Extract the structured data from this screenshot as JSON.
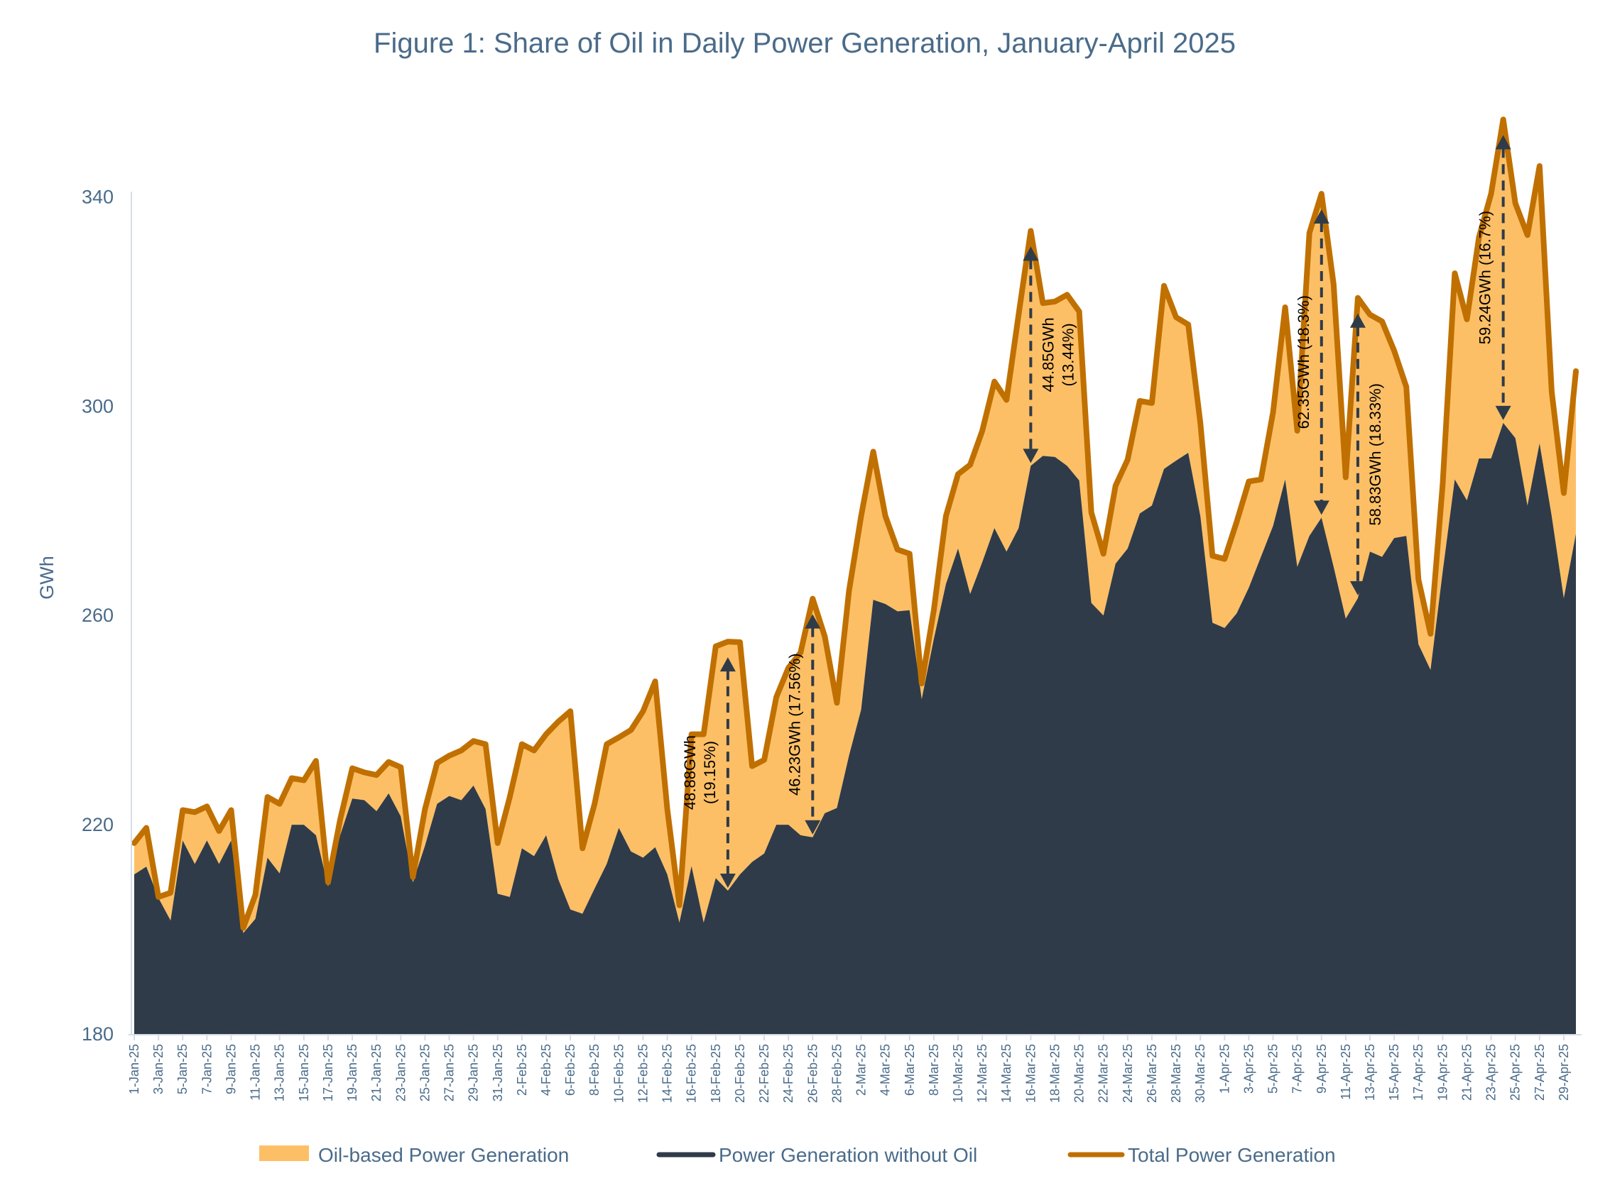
{
  "chart_data": {
    "type": "area",
    "title": "Figure 1: Share of Oil in Daily Power Generation, January-April 2025",
    "xlabel": "",
    "ylabel": "GWh",
    "ylim": [
      180,
      360
    ],
    "yticks": [
      180,
      220,
      260,
      300,
      340
    ],
    "grid": false,
    "legend_position": "bottom",
    "colors": {
      "oil": "#FDBF66",
      "without_oil": "#2F3B48",
      "total": "#C07000",
      "title": "#4A6B8A",
      "arrow": "#2F3B48"
    },
    "x_start": "1-Jan-25",
    "x": [
      "1-Jan-25",
      "2-Jan-25",
      "3-Jan-25",
      "4-Jan-25",
      "5-Jan-25",
      "6-Jan-25",
      "7-Jan-25",
      "8-Jan-25",
      "9-Jan-25",
      "10-Jan-25",
      "11-Jan-25",
      "12-Jan-25",
      "13-Jan-25",
      "14-Jan-25",
      "15-Jan-25",
      "16-Jan-25",
      "17-Jan-25",
      "18-Jan-25",
      "19-Jan-25",
      "20-Jan-25",
      "21-Jan-25",
      "22-Jan-25",
      "23-Jan-25",
      "24-Jan-25",
      "25-Jan-25",
      "26-Jan-25",
      "27-Jan-25",
      "28-Jan-25",
      "29-Jan-25",
      "30-Jan-25",
      "31-Jan-25",
      "1-Feb-25",
      "2-Feb-25",
      "3-Feb-25",
      "4-Feb-25",
      "5-Feb-25",
      "6-Feb-25",
      "7-Feb-25",
      "8-Feb-25",
      "9-Feb-25",
      "10-Feb-25",
      "11-Feb-25",
      "12-Feb-25",
      "13-Feb-25",
      "14-Feb-25",
      "15-Feb-25",
      "16-Feb-25",
      "17-Feb-25",
      "18-Feb-25",
      "19-Feb-25",
      "20-Feb-25",
      "21-Feb-25",
      "22-Feb-25",
      "23-Feb-25",
      "24-Feb-25",
      "25-Feb-25",
      "26-Feb-25",
      "27-Feb-25",
      "28-Feb-25",
      "1-Mar-25",
      "2-Mar-25",
      "3-Mar-25",
      "4-Mar-25",
      "5-Mar-25",
      "6-Mar-25",
      "7-Mar-25",
      "8-Mar-25",
      "9-Mar-25",
      "10-Mar-25",
      "11-Mar-25",
      "12-Mar-25",
      "13-Mar-25",
      "14-Mar-25",
      "15-Mar-25",
      "16-Mar-25",
      "17-Mar-25",
      "18-Mar-25",
      "19-Mar-25",
      "20-Mar-25",
      "21-Mar-25",
      "22-Mar-25",
      "23-Mar-25",
      "24-Mar-25",
      "25-Mar-25",
      "26-Mar-25",
      "27-Mar-25",
      "28-Mar-25",
      "29-Mar-25",
      "30-Mar-25",
      "31-Mar-25",
      "1-Apr-25",
      "2-Apr-25",
      "3-Apr-25",
      "4-Apr-25",
      "5-Apr-25",
      "6-Apr-25",
      "7-Apr-25",
      "8-Apr-25",
      "9-Apr-25",
      "10-Apr-25",
      "11-Apr-25",
      "12-Apr-25",
      "13-Apr-25",
      "14-Apr-25",
      "15-Apr-25",
      "16-Apr-25",
      "17-Apr-25",
      "18-Apr-25",
      "19-Apr-25",
      "20-Apr-25",
      "21-Apr-25",
      "22-Apr-25",
      "23-Apr-25",
      "24-Apr-25",
      "25-Apr-25",
      "26-Apr-25",
      "27-Apr-25",
      "28-Apr-25",
      "29-Apr-25",
      "30-Apr-25"
    ],
    "xtick_labels": [
      "1-Jan-25",
      "3-Jan-25",
      "5-Jan-25",
      "7-Jan-25",
      "9-Jan-25",
      "11-Jan-25",
      "13-Jan-25",
      "15-Jan-25",
      "17-Jan-25",
      "19-Jan-25",
      "21-Jan-25",
      "23-Jan-25",
      "25-Jan-25",
      "27-Jan-25",
      "29-Jan-25",
      "31-Jan-25",
      "2-Feb-25",
      "4-Feb-25",
      "6-Feb-25",
      "8-Feb-25",
      "10-Feb-25",
      "12-Feb-25",
      "14-Feb-25",
      "16-Feb-25",
      "18-Feb-25",
      "20-Feb-25",
      "22-Feb-25",
      "24-Feb-25",
      "26-Feb-25",
      "28-Feb-25",
      "2-Mar-25",
      "4-Mar-25",
      "6-Mar-25",
      "8-Mar-25",
      "10-Mar-25",
      "12-Mar-25",
      "14-Mar-25",
      "16-Mar-25",
      "18-Mar-25",
      "20-Mar-25",
      "22-Mar-25",
      "24-Mar-25",
      "26-Mar-25",
      "28-Mar-25",
      "30-Mar-25",
      "1-Apr-25",
      "3-Apr-25",
      "5-Apr-25",
      "7-Apr-25",
      "9-Apr-25",
      "11-Apr-25",
      "13-Apr-25",
      "15-Apr-25",
      "17-Apr-25",
      "19-Apr-25",
      "21-Apr-25",
      "23-Apr-25",
      "25-Apr-25",
      "27-Apr-25",
      "29-Apr-25"
    ],
    "series": [
      {
        "name": "Oil-based Power Generation",
        "kind": "area-between"
      },
      {
        "name": "Power Generation without Oil",
        "kind": "area",
        "values": [
          210.5,
          212,
          206,
          201.7,
          217,
          212.5,
          217,
          212.5,
          217,
          199.3,
          202,
          213.7,
          210.7,
          220,
          220,
          218,
          208.2,
          218,
          225,
          224.7,
          222.6,
          226,
          221.6,
          209,
          216,
          224,
          225.5,
          224.7,
          227.5,
          223,
          206.8,
          206.2,
          215.5,
          214,
          218,
          209.6,
          203.8,
          203,
          207.8,
          212.5,
          219.4,
          214.9,
          213.7,
          215.7,
          210.5,
          201.3,
          212.1,
          201.3,
          209.8,
          207.4,
          210.5,
          212.9,
          214.5,
          220,
          220,
          218,
          217.6,
          222.2,
          223.2,
          233.2,
          242,
          263,
          262.2,
          260.8,
          261,
          244,
          255.5,
          266,
          272.8,
          264.1,
          270.2,
          276.7,
          272.2,
          276.7,
          288.6,
          290.5,
          290.3,
          288.6,
          285.8,
          262.4,
          260,
          269.9,
          272.8,
          279.5,
          281,
          288,
          289.6,
          291.1,
          279,
          258.6,
          257.6,
          260.4,
          265.3,
          271.2,
          277.1,
          286,
          269.3,
          275.2,
          278.7,
          269.3,
          259.4,
          263.3,
          272.2,
          271.2,
          274.8,
          275.2,
          254.5,
          249.6,
          268.3,
          286,
          282,
          290,
          290,
          296.8,
          293.9,
          281,
          292.9,
          279,
          263.3,
          275.6
        ]
      },
      {
        "name": "Total Power Generation",
        "kind": "line",
        "values": [
          216.5,
          219.4,
          206.2,
          207,
          222.8,
          222.4,
          223.5,
          218.8,
          222.8,
          200.3,
          206.6,
          225.3,
          224,
          228.9,
          228.5,
          232.2,
          209,
          221,
          230.8,
          230,
          229.5,
          232,
          231,
          210,
          223,
          231.8,
          233.2,
          234.2,
          236,
          235.4,
          216.5,
          225.3,
          235.4,
          234.2,
          237.3,
          239.7,
          241.7,
          215.5,
          224,
          235.4,
          236.7,
          238.1,
          241.7,
          247.4,
          223,
          204.6,
          237.3,
          237.3,
          254.1,
          255,
          254.9,
          231.2,
          232.4,
          244.4,
          250,
          252.9,
          263.2,
          256,
          243.3,
          264.7,
          279,
          291.3,
          279,
          272.6,
          271.8,
          247,
          261,
          279,
          287,
          288.8,
          295.3,
          304.7,
          301.2,
          317.5,
          333.5,
          319.7,
          320,
          321.3,
          318.1,
          279.7,
          271.8,
          284.8,
          289.8,
          301,
          300.6,
          323,
          317,
          315.6,
          296.8,
          271.4,
          270.8,
          277.9,
          285.6,
          286,
          298.8,
          318.9,
          295.3,
          333.1,
          340.6,
          323.3,
          286.4,
          320.7,
          317.5,
          316.2,
          310.6,
          303.7,
          266.9,
          256.5,
          285,
          325.4,
          316.6,
          332.3,
          340.6,
          354.8,
          338.8,
          332.7,
          345.9,
          302.8,
          283.4,
          306.7
        ]
      }
    ],
    "annotations": [
      {
        "date": "19-Feb-25",
        "lines": [
          "48.88GWh",
          "(19.15%)"
        ]
      },
      {
        "date": "26-Feb-25",
        "lines": [
          "46.23GWh (17.56%)"
        ]
      },
      {
        "date": "16-Mar-25",
        "lines": [
          "44.85GWh",
          "(13.44%)"
        ]
      },
      {
        "date": "9-Apr-25",
        "lines": [
          "62.35GWh (18.3%)"
        ]
      },
      {
        "date": "12-Apr-25",
        "lines": [
          "58.83GWh (18.33%)"
        ]
      },
      {
        "date": "24-Apr-25",
        "lines": [
          "59.24GWh (16.7%)"
        ]
      }
    ],
    "legend": [
      "Oil-based Power Generation",
      "Power Generation without Oil",
      "Total Power Generation"
    ]
  }
}
